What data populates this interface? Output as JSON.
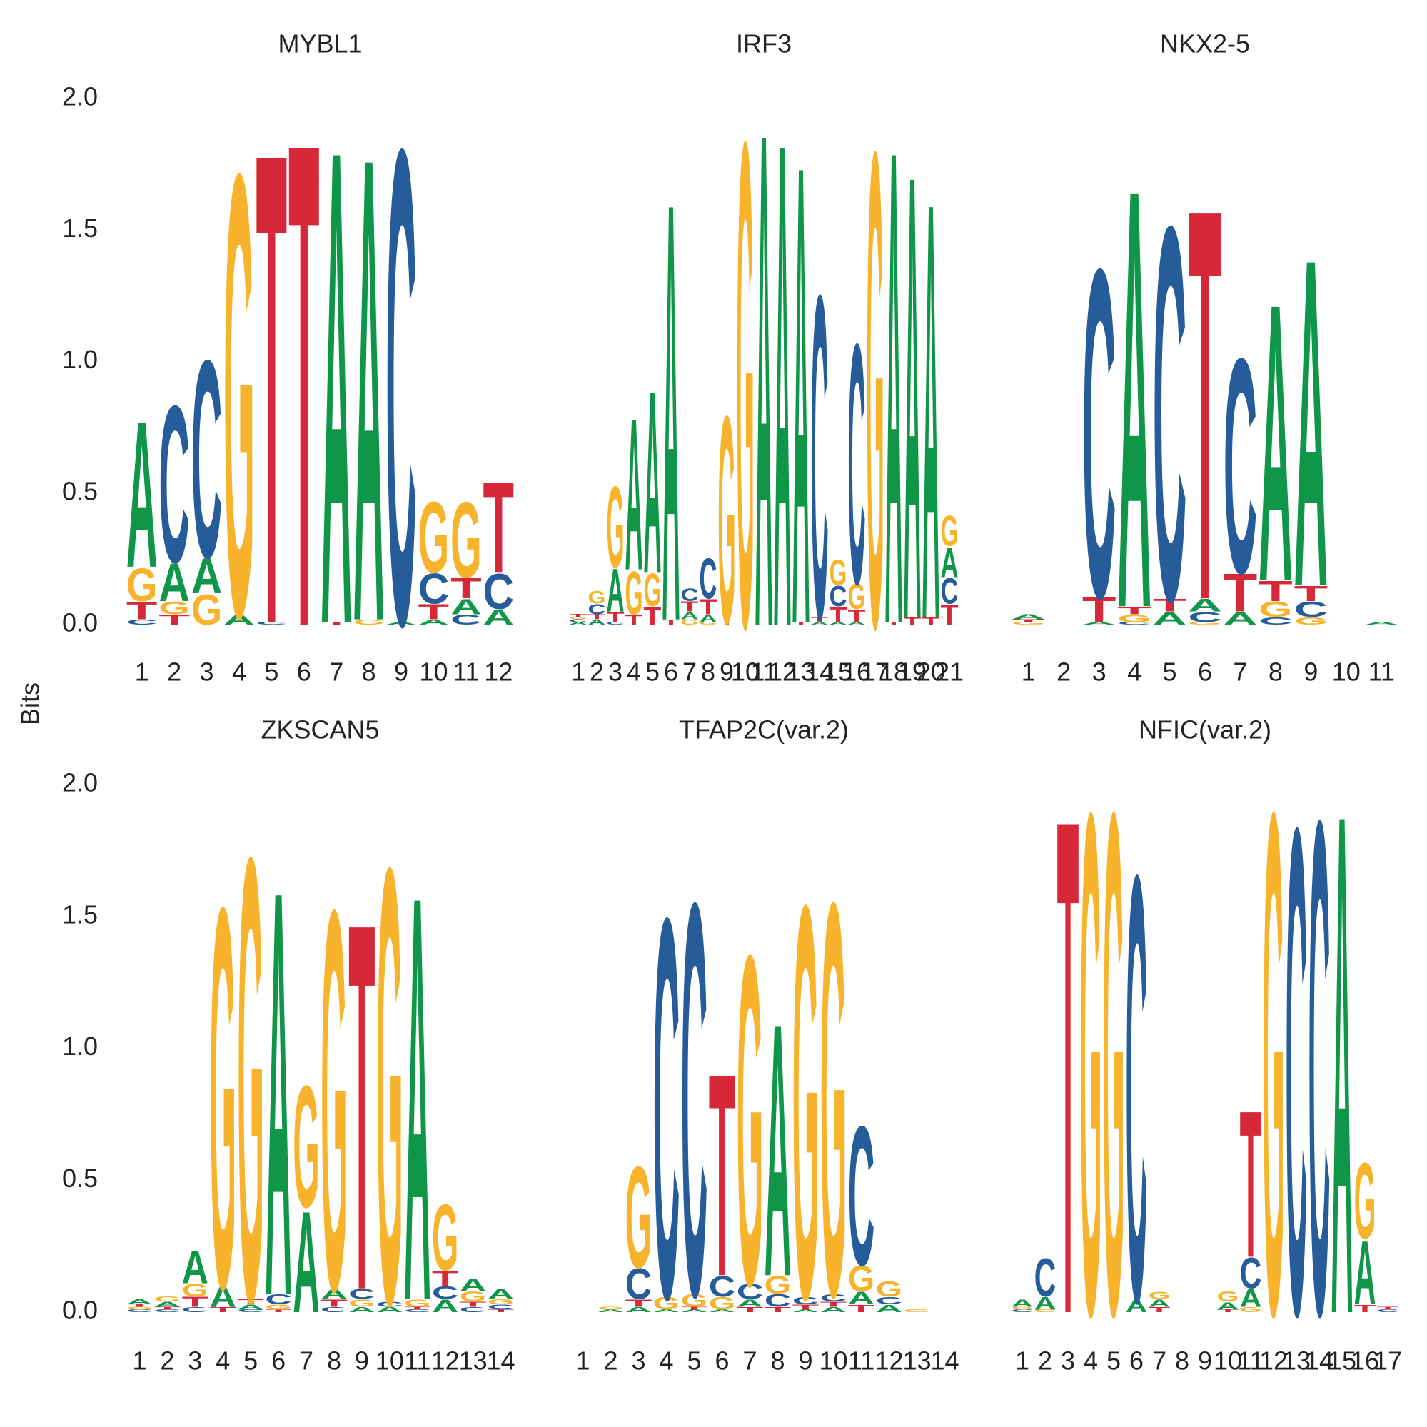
{
  "ylabel": "Bits",
  "chart_data": [
    {
      "type": "logo",
      "title": "MYBL1",
      "categories": [
        1,
        2,
        3,
        4,
        5,
        6,
        7,
        8,
        9,
        10,
        11,
        12
      ],
      "ylim": [
        0,
        2
      ],
      "yticks": [
        {
          "value": 0,
          "label": "0.0"
        },
        0.5,
        {
          "value": 1,
          "label": "1.0"
        },
        1.5,
        {
          "value": 2,
          "label": "2.0"
        }
      ],
      "series": [
        {
          "name": "A",
          "color": "#109648",
          "values": [
            0.58,
            0.15,
            0.14,
            0.04,
            0,
            0,
            1.88,
            1.84,
            0.01,
            0.02,
            0.06,
            0.06
          ]
        },
        {
          "name": "C",
          "color": "#255C99",
          "values": [
            0.02,
            0.62,
            0.78,
            0,
            0.01,
            0,
            0,
            0,
            1.88,
            0.12,
            0.04,
            0.14
          ]
        },
        {
          "name": "G",
          "color": "#F7B32B",
          "values": [
            0.13,
            0.05,
            0.12,
            1.75,
            0,
            0,
            0,
            0.02,
            0,
            0.28,
            0.3,
            0
          ]
        },
        {
          "name": "T",
          "color": "#D62839",
          "values": [
            0.07,
            0.04,
            0,
            0,
            1.87,
            1.92,
            0.01,
            0,
            0,
            0.06,
            0.08,
            0.36
          ]
        }
      ]
    },
    {
      "type": "logo",
      "title": "IRF3",
      "categories": [
        1,
        2,
        3,
        4,
        5,
        6,
        7,
        8,
        9,
        10,
        11,
        12,
        13,
        14,
        15,
        16,
        17,
        18,
        19,
        20,
        21
      ],
      "ylim": [
        0,
        2
      ],
      "series": [
        {
          "name": "A",
          "color": "#109648",
          "values": [
            0.01,
            0.02,
            0.17,
            0.6,
            0.72,
            1.66,
            0.03,
            0.03,
            0,
            0,
            1.96,
            1.92,
            1.82,
            0.01,
            0.01,
            0.01,
            0,
            1.88,
            1.76,
            1.65,
            0.12
          ]
        },
        {
          "name": "C",
          "color": "#255C99",
          "values": [
            0.01,
            0.04,
            0.01,
            0,
            0,
            0,
            0.05,
            0.16,
            0,
            0,
            0,
            0,
            0,
            1.28,
            0.08,
            0.95,
            0,
            0,
            0,
            0,
            0.1
          ]
        },
        {
          "name": "G",
          "color": "#F7B32B",
          "values": [
            0.01,
            0.05,
            0.32,
            0.17,
            0.13,
            0,
            0.02,
            0.01,
            0.82,
            1.92,
            0,
            0,
            0,
            0,
            0.1,
            0.1,
            1.88,
            0,
            0,
            0,
            0.12
          ]
        },
        {
          "name": "T",
          "color": "#D62839",
          "values": [
            0.01,
            0.02,
            0.04,
            0.04,
            0.07,
            0.02,
            0.04,
            0.06,
            0.01,
            0,
            0,
            0,
            0.01,
            0.02,
            0.06,
            0.05,
            0,
            0.01,
            0.03,
            0.03,
            0.08
          ]
        }
      ]
    },
    {
      "type": "logo",
      "title": "NKX2-5",
      "categories": [
        1,
        2,
        3,
        4,
        5,
        6,
        7,
        8,
        9,
        10,
        11
      ],
      "ylim": [
        0,
        2
      ],
      "series": [
        {
          "name": "A",
          "color": "#109648",
          "values": [
            0.02,
            0,
            0.01,
            1.66,
            0.05,
            0.05,
            0.05,
            1.1,
            1.3,
            0,
            0.01
          ]
        },
        {
          "name": "C",
          "color": "#255C99",
          "values": [
            0,
            0,
            1.3,
            0.01,
            1.48,
            0.04,
            0.85,
            0.03,
            0.06,
            0,
            0
          ]
        },
        {
          "name": "G",
          "color": "#F7B32B",
          "values": [
            0.01,
            0,
            0,
            0.03,
            0,
            0.01,
            0,
            0.06,
            0.03,
            0,
            0
          ]
        },
        {
          "name": "T",
          "color": "#D62839",
          "values": [
            0.01,
            0,
            0.1,
            0.03,
            0.05,
            1.55,
            0.15,
            0.08,
            0.06,
            0,
            0
          ]
        }
      ]
    },
    {
      "type": "logo",
      "title": "ZKSCAN5",
      "categories": [
        1,
        2,
        3,
        4,
        5,
        6,
        7,
        8,
        9,
        10,
        11,
        12,
        13,
        14
      ],
      "ylim": [
        0,
        2
      ],
      "yticks": [
        {
          "value": 0,
          "label": "0.0"
        },
        0.5,
        {
          "value": 1,
          "label": "1.0"
        },
        1.5,
        {
          "value": 2,
          "label": "2.0"
        }
      ],
      "series": [
        {
          "name": "A",
          "color": "#109648",
          "values": [
            0.02,
            0.02,
            0.13,
            0.08,
            0.02,
            1.6,
            0.4,
            0.04,
            0.02,
            0.02,
            1.6,
            0.05,
            0.05,
            0.04
          ]
        },
        {
          "name": "C",
          "color": "#255C99",
          "values": [
            0.01,
            0.01,
            0.02,
            0,
            0.01,
            0.04,
            0,
            0.02,
            0.04,
            0.02,
            0.01,
            0.05,
            0.02,
            0.02
          ]
        },
        {
          "name": "G",
          "color": "#F7B32B",
          "values": [
            0.01,
            0.02,
            0.05,
            1.5,
            1.75,
            0.02,
            0.48,
            1.5,
            0.03,
            1.72,
            0.03,
            0.26,
            0.04,
            0.02
          ]
        },
        {
          "name": "T",
          "color": "#D62839",
          "values": [
            0.01,
            0.01,
            0.04,
            0.02,
            0.02,
            0.01,
            0,
            0.03,
            1.45,
            0,
            0.01,
            0.06,
            0.02,
            0.01
          ]
        }
      ]
    },
    {
      "type": "logo",
      "title": "TFAP2C(var.2)",
      "categories": [
        1,
        2,
        3,
        4,
        5,
        6,
        7,
        8,
        9,
        10,
        11,
        12,
        13,
        14
      ],
      "ylim": [
        0,
        2
      ],
      "series": [
        {
          "name": "A",
          "color": "#109648",
          "values": [
            0,
            0.01,
            0.02,
            0.01,
            0.01,
            0.01,
            0.03,
            1.0,
            0.01,
            0.02,
            0.05,
            0.03,
            0,
            0
          ]
        },
        {
          "name": "C",
          "color": "#255C99",
          "values": [
            0,
            0,
            0.12,
            1.5,
            1.55,
            0.08,
            0.06,
            0.05,
            0.03,
            0.03,
            0.55,
            0.03,
            0,
            0
          ]
        },
        {
          "name": "G",
          "color": "#F7B32B",
          "values": [
            0,
            0.01,
            0.4,
            0.05,
            0.05,
            0.05,
            1.3,
            0.07,
            1.55,
            1.55,
            0.1,
            0.06,
            0.01,
            0
          ]
        },
        {
          "name": "T",
          "color": "#D62839",
          "values": [
            0,
            0,
            0.03,
            0,
            0.01,
            0.8,
            0.02,
            0.02,
            0.02,
            0.02,
            0.03,
            0,
            0,
            0
          ]
        }
      ]
    },
    {
      "type": "logo",
      "title": "NFIC(var.2)",
      "categories": [
        1,
        2,
        3,
        4,
        5,
        6,
        7,
        8,
        9,
        10,
        11,
        12,
        13,
        14,
        15,
        16,
        17
      ],
      "ylim": [
        0,
        2
      ],
      "series": [
        {
          "name": "A",
          "color": "#109648",
          "values": [
            0.03,
            0.05,
            0,
            0,
            0,
            0.05,
            0.03,
            0,
            0,
            0.03,
            0.07,
            0,
            0,
            0,
            1.98,
            0.25,
            0
          ]
        },
        {
          "name": "C",
          "color": "#255C99",
          "values": [
            0.01,
            0.15,
            0,
            0,
            0,
            1.68,
            0,
            0,
            0,
            0,
            0.12,
            0,
            1.92,
            1.95,
            0,
            0,
            0.01
          ]
        },
        {
          "name": "G",
          "color": "#F7B32B",
          "values": [
            0.01,
            0.01,
            0,
            1.98,
            1.98,
            0,
            0.03,
            0,
            0,
            0.04,
            0.02,
            1.98,
            0,
            0,
            0,
            0.3,
            0
          ]
        },
        {
          "name": "T",
          "color": "#D62839",
          "values": [
            0,
            0,
            1.96,
            0,
            0,
            0,
            0.02,
            0,
            0,
            0.01,
            0.58,
            0,
            0,
            0,
            0,
            0.03,
            0.01
          ]
        }
      ]
    }
  ]
}
